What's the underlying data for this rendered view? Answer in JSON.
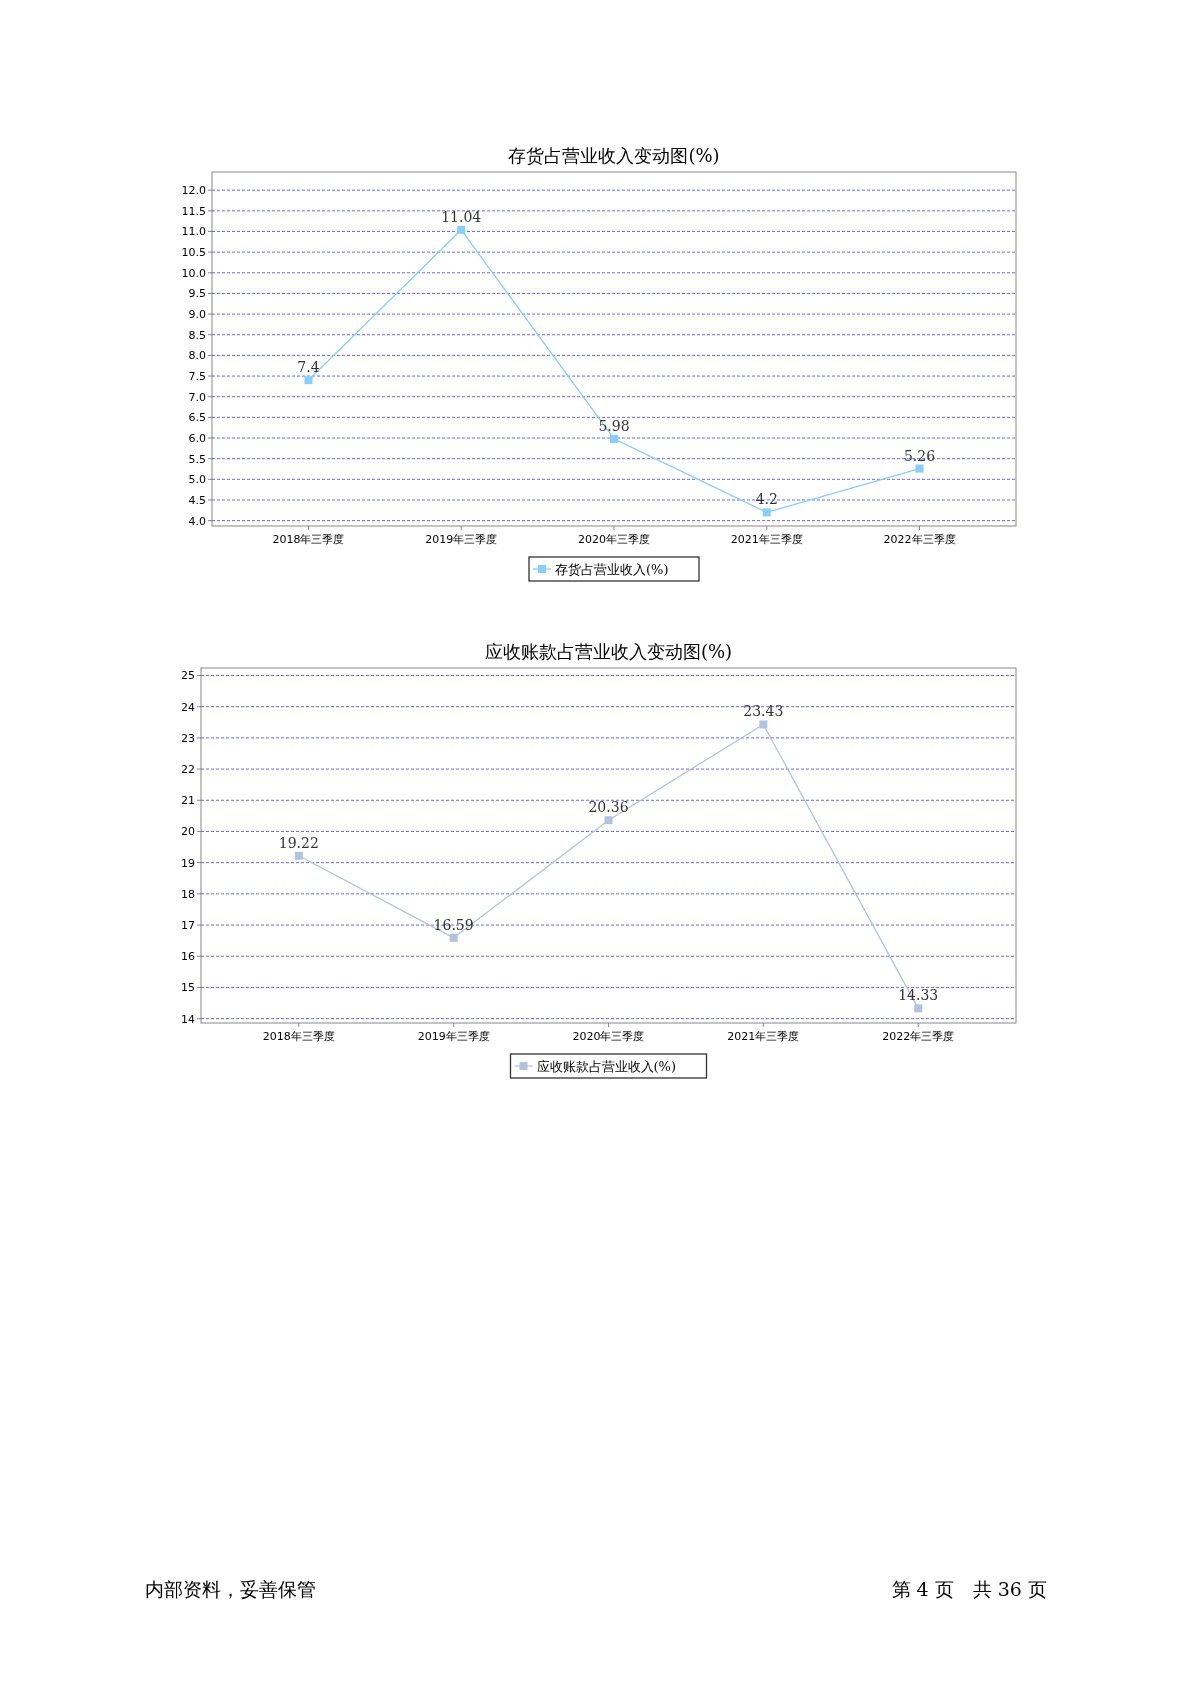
{
  "chart_data": [
    {
      "type": "line",
      "title": "存货占营业收入变动图(%)",
      "categories": [
        "2018年三季度",
        "2019年三季度",
        "2020年三季度",
        "2021年三季度",
        "2022年三季度"
      ],
      "series": [
        {
          "name": "存货占营业收入(%)",
          "color": "#87cefa",
          "values": [
            7.4,
            11.04,
            5.98,
            4.2,
            5.26
          ]
        }
      ],
      "ylim": [
        3.87,
        12.44
      ],
      "yticks": [
        {
          "value": 4,
          "label": "4.0"
        },
        4.5,
        {
          "value": 5,
          "label": "5.0"
        },
        5.5,
        {
          "value": 6,
          "label": "6.0"
        },
        6.5,
        {
          "value": 7,
          "label": "7.0"
        },
        7.5,
        {
          "value": 8,
          "label": "8.0"
        },
        8.5,
        {
          "value": 9,
          "label": "9.0"
        },
        9.5,
        {
          "value": 10,
          "label": "10.0"
        },
        10.5,
        {
          "value": 11,
          "label": "11.0"
        },
        11.5,
        {
          "value": 12,
          "label": "12.0"
        }
      ],
      "grid": "y",
      "legend": "bottom",
      "marker": "square",
      "line_style": "solid",
      "data_labels": true
    },
    {
      "type": "line",
      "title": "应收账款占营业收入变动图(%)",
      "categories": [
        "2018年三季度",
        "2019年三季度",
        "2020年三季度",
        "2021年三季度",
        "2022年三季度"
      ],
      "series": [
        {
          "name": "应收账款占营业收入(%)",
          "color": "#b0c4de",
          "values": [
            19.22,
            16.59,
            20.36,
            23.43,
            14.33
          ]
        }
      ],
      "ylim": [
        13.86,
        25.24
      ],
      "yticks": [
        14,
        15,
        16,
        17,
        18,
        19,
        20,
        21,
        22,
        23,
        24,
        25
      ],
      "grid": "y",
      "legend": "bottom",
      "marker": "square",
      "line_style": "solid",
      "data_labels": true,
      "annotations": [
        "内部资料，妥善保管",
        "第 4 页　共 36 页"
      ]
    }
  ]
}
